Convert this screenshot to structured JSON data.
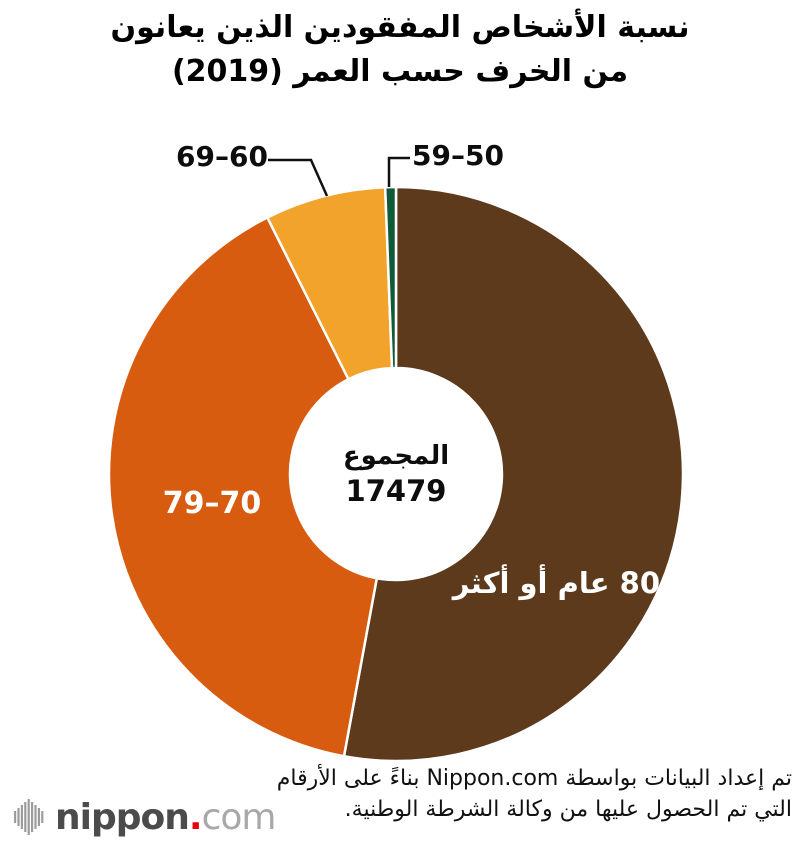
{
  "title": {
    "line1": "نسبة الأشخاص المفقودين الذين يعانون",
    "line2": "من الخرف حسب العمر (2019)"
  },
  "center": {
    "label": "المجموع",
    "total": "17479"
  },
  "chart_data": {
    "type": "pie",
    "subtype": "donut",
    "title": "نسبة الأشخاص المفقودين الذين يعانون من الخرف حسب العمر (2019)",
    "total_label": "المجموع",
    "total_value": 17479,
    "start_angle_deg_from_12_clockwise": 0,
    "values_estimated_from_arc_angles": true,
    "series": [
      {
        "id": "age-80-plus",
        "label": "80 عام أو أكثر",
        "value_pct_est": 52.9,
        "color": "#5C3A1B",
        "label_color": "#ffffff"
      },
      {
        "id": "age-70-79",
        "label": "79–70",
        "value_pct_est": 39.7,
        "color": "#D85C10",
        "label_color": "#ffffff"
      },
      {
        "id": "age-60-69",
        "label": "69–60",
        "value_pct_est": 6.8,
        "color": "#F2A32B",
        "label_color": "#0d0d0d"
      },
      {
        "id": "age-50-59",
        "label": "59–50",
        "value_pct_est": 0.6,
        "color": "#0F5A38",
        "label_color": "#0d0d0d"
      }
    ],
    "separator_color": "#ffffff",
    "legend_position": "none"
  },
  "source": {
    "line1": "تم إعداد البيانات بواسطة Nippon.com بناءً على الأرقام",
    "line2": "التي تم الحصول عليها من وكالة الشرطة الوطنية."
  },
  "logo": {
    "name": "nippon",
    "dot": ".",
    "tld": "com"
  }
}
